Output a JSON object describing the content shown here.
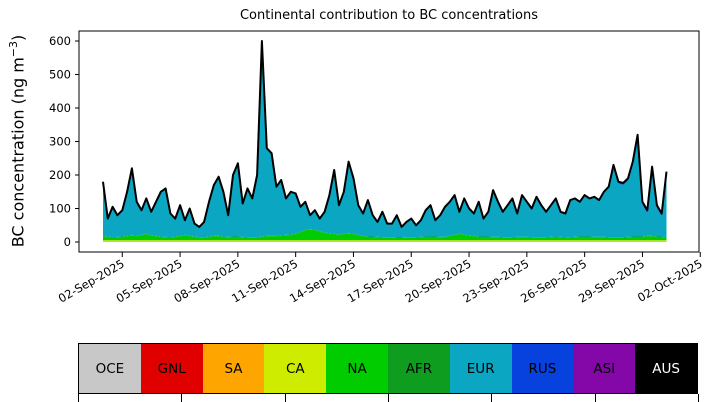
{
  "figure": {
    "title": "Continental contribution to BC concentrations",
    "ylabel_prefix": "BC concentration (ng m",
    "ylabel_superscript": "−3",
    "ylabel_suffix": ")"
  },
  "legend": {
    "items": [
      {
        "label": "OCE",
        "color": "#c8c8c8",
        "text_color": "#000000"
      },
      {
        "label": "GNL",
        "color": "#e10000",
        "text_color": "#000000"
      },
      {
        "label": "SA",
        "color": "#ffa500",
        "text_color": "#000000"
      },
      {
        "label": "CA",
        "color": "#cdec00",
        "text_color": "#000000"
      },
      {
        "label": "NA",
        "color": "#00cc00",
        "text_color": "#000000"
      },
      {
        "label": "AFR",
        "color": "#0f9d20",
        "text_color": "#000000"
      },
      {
        "label": "EUR",
        "color": "#0aa6c2",
        "text_color": "#000000"
      },
      {
        "label": "RUS",
        "color": "#0741de",
        "text_color": "#000000"
      },
      {
        "label": "ASI",
        "color": "#8408a8",
        "text_color": "#000000"
      },
      {
        "label": "AUS",
        "color": "#000000",
        "text_color": "#ffffff"
      }
    ]
  },
  "chart_data": {
    "type": "area",
    "stacked": true,
    "title": "Continental contribution to BC concentrations",
    "xlabel": "",
    "ylabel": "BC concentration (ng m^-3)",
    "grid": false,
    "legend_position": "bottom strip",
    "y_axis": {
      "ticks": [
        0,
        100,
        200,
        300,
        400,
        500,
        600
      ],
      "lim": [
        -30,
        630
      ]
    },
    "x_axis": {
      "tick_labels": [
        "02-Sep-2025",
        "05-Sep-2025",
        "08-Sep-2025",
        "11-Sep-2025",
        "14-Sep-2025",
        "17-Sep-2025",
        "20-Sep-2025",
        "23-Sep-2025",
        "26-Sep-2025",
        "29-Sep-2025",
        "02-Oct-2025"
      ],
      "tick_label_rotation_deg": 30,
      "data_start": "01-Sep-2025 00:00",
      "sample_step_days": 0.25,
      "tick_start_day": 1,
      "tick_step_days": 3
    },
    "total_bc": [
      180,
      70,
      105,
      80,
      95,
      150,
      220,
      120,
      95,
      130,
      90,
      120,
      150,
      160,
      85,
      70,
      110,
      65,
      100,
      55,
      45,
      60,
      120,
      170,
      195,
      150,
      80,
      200,
      235,
      115,
      160,
      130,
      200,
      600,
      280,
      265,
      165,
      185,
      130,
      150,
      145,
      105,
      120,
      80,
      95,
      70,
      90,
      140,
      215,
      110,
      150,
      240,
      190,
      110,
      85,
      125,
      80,
      60,
      90,
      55,
      55,
      80,
      45,
      60,
      70,
      50,
      65,
      95,
      110,
      65,
      80,
      105,
      120,
      140,
      90,
      130,
      100,
      85,
      120,
      70,
      90,
      155,
      120,
      90,
      110,
      130,
      85,
      140,
      120,
      100,
      135,
      110,
      90,
      110,
      130,
      90,
      85,
      125,
      130,
      120,
      140,
      130,
      135,
      125,
      150,
      165,
      230,
      180,
      176,
      190,
      240,
      320,
      120,
      95,
      225,
      110,
      85,
      210
    ],
    "regions": [
      {
        "code": "OCE",
        "color": "#c8c8c8",
        "values": 1
      },
      {
        "code": "GNL",
        "color": "#e10000",
        "values": 0.3
      },
      {
        "code": "SA",
        "color": "#ffa500",
        "values": 0.7
      },
      {
        "code": "CA",
        "color": "#cdec00",
        "values": 3
      },
      {
        "code": "NA",
        "color": "#00cc00",
        "values": [
          12,
          10,
          8,
          9,
          10,
          12,
          14,
          12,
          15,
          18,
          14,
          12,
          10,
          9,
          8,
          10,
          12,
          15,
          12,
          10,
          8,
          8,
          10,
          12,
          12,
          10,
          9,
          10,
          10,
          9,
          8,
          8,
          8,
          10,
          12,
          12,
          12,
          14,
          15,
          16,
          18,
          24,
          30,
          32,
          30,
          26,
          22,
          20,
          18,
          16,
          18,
          20,
          18,
          15,
          12,
          10,
          10,
          9,
          8,
          8,
          8,
          7,
          7,
          8,
          8,
          8,
          9,
          10,
          10,
          10,
          9,
          9,
          12,
          16,
          18,
          16,
          14,
          12,
          10,
          10,
          10,
          9,
          9,
          8,
          8,
          8,
          9,
          9,
          9,
          8,
          8,
          8,
          8,
          9,
          10,
          9,
          8,
          8,
          9,
          10,
          10,
          10,
          9,
          9,
          9,
          8,
          8,
          8,
          8,
          9,
          10,
          10,
          10,
          12,
          12,
          10,
          10,
          8
        ]
      },
      {
        "code": "AFR",
        "color": "#0f9d20",
        "values": 1.5
      },
      {
        "code": "EUR",
        "color": "#0aa6c2",
        "values": "remainder"
      },
      {
        "code": "RUS",
        "color": "#0741de",
        "values": [
          1,
          1,
          1,
          1,
          1,
          1,
          1,
          1,
          1,
          1,
          1,
          1,
          1,
          1,
          1,
          1,
          1,
          1,
          1,
          1,
          1,
          1,
          1,
          1,
          1,
          1,
          1,
          1,
          1,
          1,
          1,
          1,
          1,
          1,
          1,
          1,
          1,
          1,
          1,
          1,
          1,
          1,
          1,
          1,
          1,
          1,
          1,
          1,
          1,
          1,
          1,
          1,
          1,
          1,
          1,
          1,
          1,
          1,
          1,
          1,
          1,
          1,
          1,
          1,
          1,
          1,
          1,
          1,
          1,
          1,
          1,
          1,
          1,
          1,
          1,
          1,
          1,
          1,
          1,
          1,
          1,
          1,
          1,
          1,
          1,
          1,
          1,
          1,
          1,
          1,
          1,
          1,
          1,
          1,
          1,
          1,
          1,
          1,
          1,
          1,
          1,
          1,
          1,
          1,
          2,
          3,
          4,
          5,
          5,
          6,
          7,
          8,
          8,
          8,
          8,
          8,
          8,
          6
        ]
      },
      {
        "code": "ASI",
        "color": "#8408a8",
        "values": 0.5
      },
      {
        "code": "AUS",
        "color": "#000000",
        "values": 0.2
      }
    ],
    "note": "EUR layer equals total_bc minus all other stacked regions; black outline traces total_bc"
  }
}
